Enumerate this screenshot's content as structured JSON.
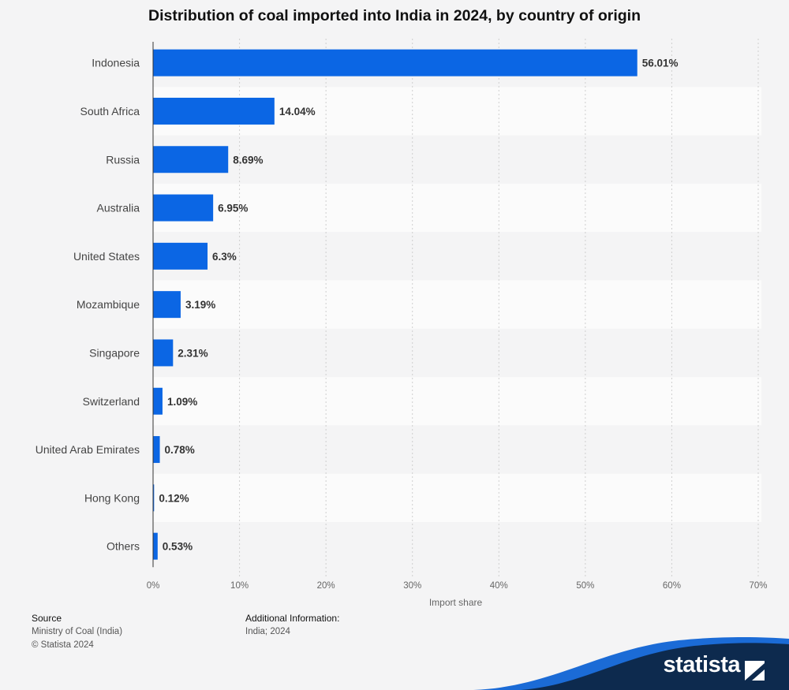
{
  "chart_data": {
    "type": "bar",
    "orientation": "horizontal",
    "title": "Distribution of coal imported into India in 2024, by country of origin",
    "categories": [
      "Indonesia",
      "South Africa",
      "Russia",
      "Australia",
      "United States",
      "Mozambique",
      "Singapore",
      "Switzerland",
      "United Arab Emirates",
      "Hong Kong",
      "Others"
    ],
    "values": [
      56.01,
      14.04,
      8.69,
      6.95,
      6.3,
      3.19,
      2.31,
      1.09,
      0.78,
      0.12,
      0.53
    ],
    "value_labels": [
      "56.01%",
      "14.04%",
      "8.69%",
      "6.95%",
      "6.3%",
      "3.19%",
      "2.31%",
      "1.09%",
      "0.78%",
      "0.12%",
      "0.53%"
    ],
    "xlabel": "Import share",
    "ylabel": "",
    "xlim": [
      0,
      70
    ],
    "xticks": [
      0,
      10,
      20,
      30,
      40,
      50,
      60,
      70
    ],
    "xtick_labels": [
      "0%",
      "10%",
      "20%",
      "30%",
      "40%",
      "50%",
      "60%",
      "70%"
    ],
    "grid": true,
    "bar_color": "#0b66e4"
  },
  "footer": {
    "source_heading": "Source",
    "source_lines": [
      "Ministry of Coal (India)",
      "© Statista 2024"
    ],
    "info_heading": "Additional Information:",
    "info_lines": [
      "India; 2024"
    ]
  },
  "brand": {
    "name": "statista",
    "colors": {
      "dark": "#0d2a4e",
      "accent": "#1b6bd6",
      "bg": "#f4f4f5"
    }
  }
}
